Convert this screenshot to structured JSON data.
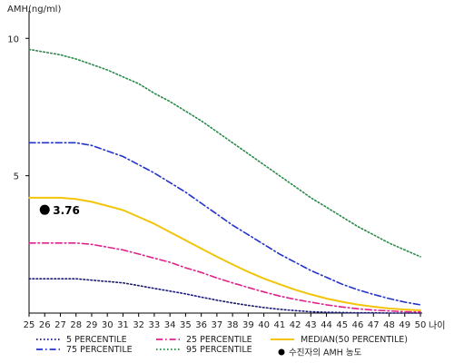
{
  "chart_data": {
    "type": "line",
    "ylabel": "AMH(ng/ml)",
    "xlabel": "나이",
    "xlim": [
      25,
      50
    ],
    "ylim": [
      0,
      11
    ],
    "y_ticks": [
      5,
      10
    ],
    "x": [
      25,
      26,
      27,
      28,
      29,
      30,
      31,
      32,
      33,
      34,
      35,
      36,
      37,
      38,
      39,
      40,
      41,
      42,
      43,
      44,
      45,
      46,
      47,
      48,
      49,
      50
    ],
    "series": [
      {
        "name": "5 PERCENTILE",
        "color": "#1a1a7a",
        "dash": "dot",
        "values": [
          1.25,
          1.25,
          1.25,
          1.25,
          1.2,
          1.15,
          1.1,
          1.0,
          0.9,
          0.8,
          0.7,
          0.58,
          0.47,
          0.37,
          0.28,
          0.2,
          0.14,
          0.09,
          0.05,
          0.03,
          0.02,
          0.01,
          0.01,
          0.0,
          0.0,
          0.0
        ]
      },
      {
        "name": "25 PERCENTILE",
        "color": "#e0208a",
        "dash": "dashdot",
        "values": [
          2.55,
          2.55,
          2.55,
          2.55,
          2.5,
          2.4,
          2.3,
          2.15,
          2.0,
          1.85,
          1.65,
          1.48,
          1.28,
          1.1,
          0.93,
          0.77,
          0.62,
          0.5,
          0.4,
          0.3,
          0.22,
          0.16,
          0.11,
          0.08,
          0.05,
          0.04
        ]
      },
      {
        "name": "MEDIAN(50 PERCENTILE)",
        "color": "#f2c40a",
        "dash": "solid",
        "values": [
          4.2,
          4.2,
          4.2,
          4.15,
          4.05,
          3.9,
          3.75,
          3.5,
          3.25,
          2.95,
          2.65,
          2.35,
          2.05,
          1.77,
          1.5,
          1.26,
          1.05,
          0.85,
          0.68,
          0.53,
          0.41,
          0.31,
          0.23,
          0.17,
          0.13,
          0.1
        ]
      },
      {
        "name": "75 PERCENTILE",
        "color": "#2233cc",
        "dash": "dashdot",
        "values": [
          6.2,
          6.2,
          6.2,
          6.2,
          6.1,
          5.9,
          5.7,
          5.4,
          5.1,
          4.75,
          4.4,
          4.0,
          3.6,
          3.2,
          2.85,
          2.5,
          2.15,
          1.85,
          1.55,
          1.3,
          1.05,
          0.85,
          0.68,
          0.53,
          0.4,
          0.3
        ]
      },
      {
        "name": "95 PERCENTILE",
        "color": "#2a8a4a",
        "dash": "dot",
        "values": [
          9.6,
          9.5,
          9.4,
          9.25,
          9.05,
          8.85,
          8.6,
          8.35,
          8.0,
          7.7,
          7.35,
          7.0,
          6.6,
          6.2,
          5.8,
          5.4,
          5.0,
          4.6,
          4.2,
          3.85,
          3.5,
          3.15,
          2.85,
          2.55,
          2.3,
          2.05
        ]
      }
    ],
    "point": {
      "name": "수진자의 AMH 농도",
      "x": 26,
      "y": 3.76,
      "label": "3.76",
      "color": "#000000"
    },
    "legend_position": "bottom",
    "grid": false
  }
}
